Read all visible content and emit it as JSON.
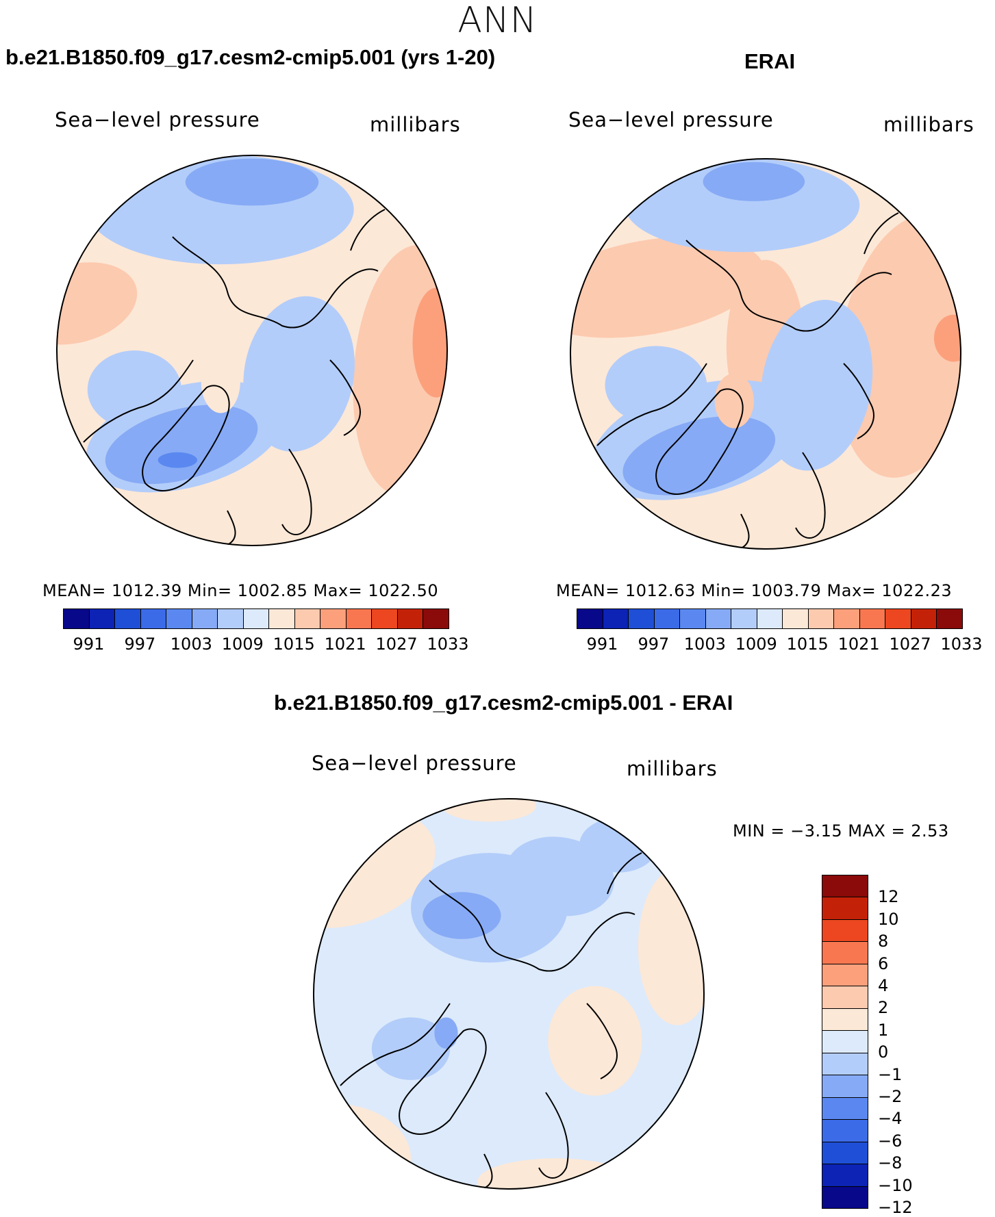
{
  "figure": {
    "season": "ANN",
    "panels": [
      {
        "title": "b.e21.B1850.f09_g17.cesm2-cmip5.001 (yrs 1-20)",
        "variable": "Sea−level pressure",
        "units": "millibars",
        "stats": "MEAN=  1012.39    Min=  1002.85    Max=  1022.50"
      },
      {
        "title": "ERAI",
        "variable": "Sea−level pressure",
        "units": "millibars",
        "stats": "MEAN=  1012.63    Min=  1003.79    Max=  1022.23"
      },
      {
        "title": "b.e21.B1850.f09_g17.cesm2-cmip5.001 - ERAI",
        "variable": "Sea−level pressure",
        "units": "millibars",
        "stats": "MIN =    −3.15  MAX =     2.53"
      }
    ],
    "field_colorbar": {
      "colors": [
        "#08088a",
        "#0c23b5",
        "#1f4fd6",
        "#3c6be8",
        "#5a88f0",
        "#86aaf5",
        "#b3cdfa",
        "#dceafb",
        "#fce8d7",
        "#fccaaf",
        "#fca07c",
        "#f87750",
        "#ec4720",
        "#c42208",
        "#8b0a0a"
      ],
      "labels": [
        "991",
        "997",
        "1003",
        "1009",
        "1015",
        "1021",
        "1027",
        "1033"
      ]
    },
    "diff_colorbar": {
      "colors": [
        "#8b0a0a",
        "#c42208",
        "#ec4720",
        "#f87750",
        "#fca07c",
        "#fccaaf",
        "#fce8d7",
        "#dceafb",
        "#b3cdfa",
        "#86aaf5",
        "#5a88f0",
        "#3c6be8",
        "#1f4fd6",
        "#0c23b5",
        "#08088a"
      ],
      "labels": [
        "12",
        "10",
        "8",
        "6",
        "4",
        "2",
        "1",
        "0",
        "−1",
        "−2",
        "−4",
        "−6",
        "−8",
        "−10",
        "−12"
      ]
    }
  }
}
